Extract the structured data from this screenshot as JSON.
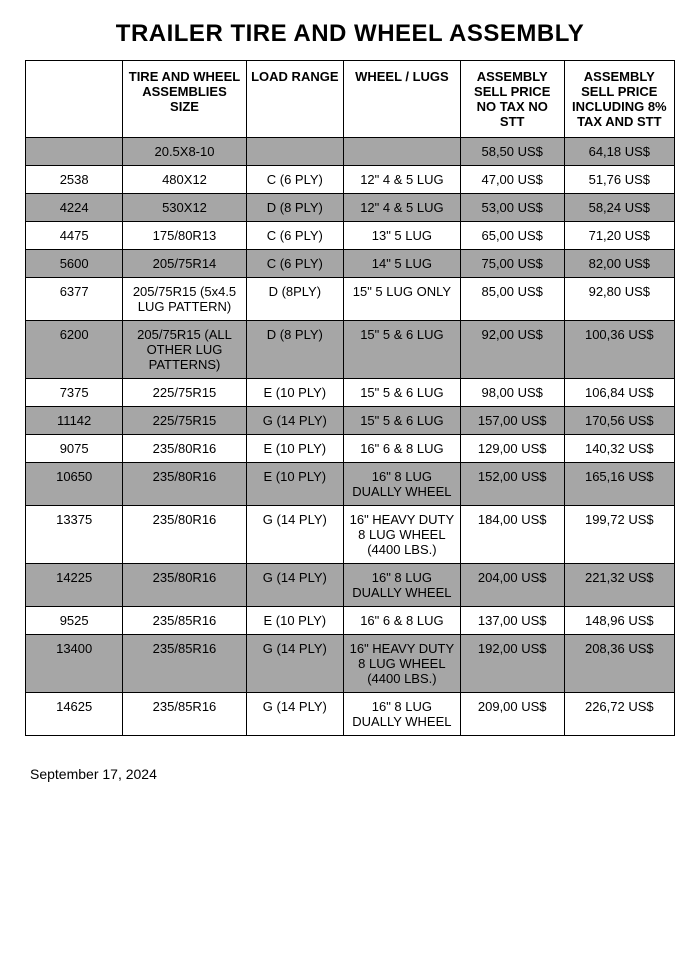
{
  "title": "TRAILER TIRE AND WHEEL ASSEMBLY",
  "footer_date": "September 17, 2024",
  "table": {
    "columns": [
      "",
      "TIRE AND WHEEL ASSEMBLIES SIZE",
      "LOAD RANGE",
      "WHEEL / LUGS",
      "ASSEMBLY SELL PRICE NO TAX NO STT",
      "ASSEMBLY SELL PRICE INCLUDING 8% TAX AND STT"
    ],
    "rows": [
      {
        "shade": true,
        "cells": [
          "",
          "20.5X8-10",
          "",
          "",
          "58,50 US$",
          "64,18 US$"
        ]
      },
      {
        "shade": false,
        "cells": [
          "2538",
          "480X12",
          "C (6 PLY)",
          "12\" 4 & 5 LUG",
          "47,00 US$",
          "51,76 US$"
        ]
      },
      {
        "shade": true,
        "cells": [
          "4224",
          "530X12",
          "D (8 PLY)",
          "12\" 4 & 5 LUG",
          "53,00 US$",
          "58,24 US$"
        ]
      },
      {
        "shade": false,
        "cells": [
          "4475",
          "175/80R13",
          "C (6 PLY)",
          "13\" 5 LUG",
          "65,00 US$",
          "71,20 US$"
        ]
      },
      {
        "shade": true,
        "cells": [
          "5600",
          "205/75R14",
          "C (6 PLY)",
          "14\" 5 LUG",
          "75,00 US$",
          "82,00 US$"
        ]
      },
      {
        "shade": false,
        "cells": [
          "6377",
          "205/75R15 (5x4.5 LUG PATTERN)",
          "D (8PLY)",
          "15\" 5 LUG ONLY",
          "85,00 US$",
          "92,80 US$"
        ]
      },
      {
        "shade": true,
        "cells": [
          "6200",
          "205/75R15 (ALL OTHER LUG PATTERNS)",
          "D (8 PLY)",
          "15\" 5 & 6 LUG",
          "92,00 US$",
          "100,36 US$"
        ]
      },
      {
        "shade": false,
        "cells": [
          "7375",
          "225/75R15",
          "E (10 PLY)",
          "15\" 5 & 6 LUG",
          "98,00 US$",
          "106,84 US$"
        ]
      },
      {
        "shade": true,
        "cells": [
          "11142",
          "225/75R15",
          "G (14 PLY)",
          "15\" 5 & 6 LUG",
          "157,00 US$",
          "170,56 US$"
        ]
      },
      {
        "shade": false,
        "cells": [
          "9075",
          "235/80R16",
          "E (10 PLY)",
          "16\" 6 & 8 LUG",
          "129,00 US$",
          "140,32 US$"
        ]
      },
      {
        "shade": true,
        "cells": [
          "10650",
          "235/80R16",
          "E (10 PLY)",
          "16\" 8 LUG DUALLY WHEEL",
          "152,00 US$",
          "165,16 US$"
        ]
      },
      {
        "shade": false,
        "cells": [
          "13375",
          "235/80R16",
          "G (14 PLY)",
          "16\" HEAVY DUTY 8 LUG WHEEL (4400 LBS.)",
          "184,00 US$",
          "199,72 US$"
        ]
      },
      {
        "shade": true,
        "cells": [
          "14225",
          "235/80R16",
          "G (14 PLY)",
          "16\" 8 LUG DUALLY WHEEL",
          "204,00 US$",
          "221,32 US$"
        ]
      },
      {
        "shade": false,
        "cells": [
          "9525",
          "235/85R16",
          "E (10 PLY)",
          "16\" 6 & 8 LUG",
          "137,00 US$",
          "148,96 US$"
        ]
      },
      {
        "shade": true,
        "cells": [
          "13400",
          "235/85R16",
          "G (14 PLY)",
          "16\" HEAVY DUTY 8 LUG WHEEL (4400 LBS.)",
          "192,00 US$",
          "208,36 US$"
        ]
      },
      {
        "shade": false,
        "cells": [
          "14625",
          "235/85R16",
          "G (14 PLY)",
          "16\" 8 LUG DUALLY WHEEL",
          "209,00 US$",
          "226,72 US$"
        ]
      }
    ]
  }
}
